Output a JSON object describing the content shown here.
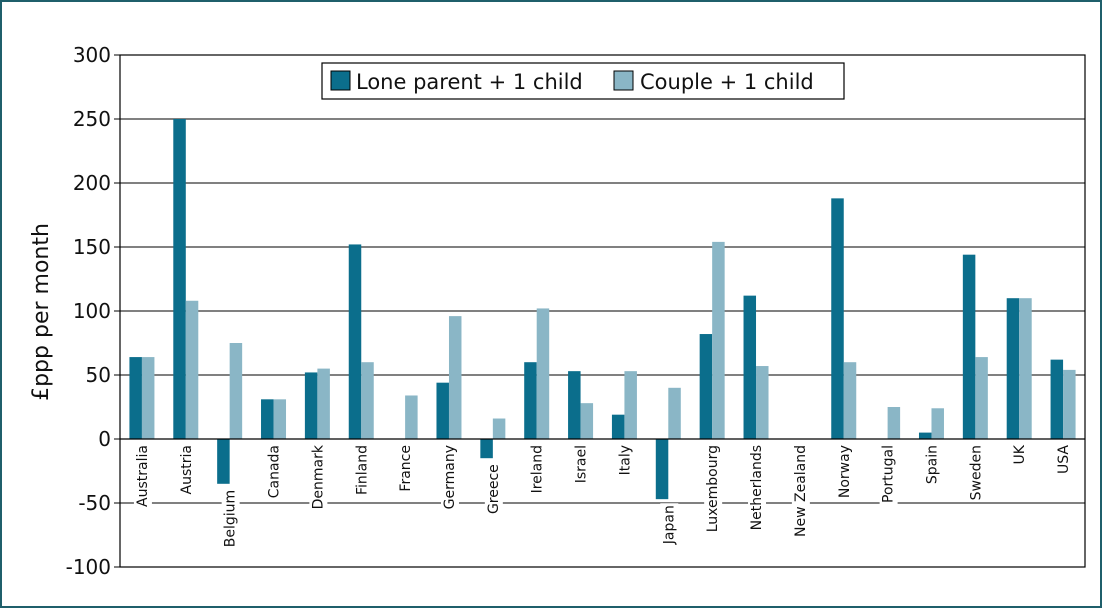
{
  "chart_data": {
    "type": "bar",
    "title": "",
    "xlabel": "",
    "ylabel": "£ppp per month",
    "ylim": [
      -100,
      300
    ],
    "yticks": [
      300,
      250,
      200,
      150,
      100,
      50,
      0,
      -50,
      -100
    ],
    "grid": true,
    "legend_position": "top-center",
    "categories": [
      "Australia",
      "Austria",
      "Belgium",
      "Canada",
      "Denmark",
      "Finland",
      "France",
      "Germany",
      "Greece",
      "Ireland",
      "Israel",
      "Italy",
      "Japan",
      "Luxembourg",
      "Netherlands",
      "New Zealand",
      "Norway",
      "Portugal",
      "Spain",
      "Sweden",
      "UK",
      "USA"
    ],
    "series": [
      {
        "name": "Lone parent + 1 child",
        "color": "#0b6e8c",
        "values": [
          64,
          250,
          -35,
          31,
          52,
          152,
          0,
          44,
          -15,
          60,
          53,
          19,
          -47,
          82,
          112,
          0,
          188,
          0,
          5,
          144,
          110,
          62
        ]
      },
      {
        "name": "Couple + 1 child",
        "color": "#8ab6c6",
        "values": [
          64,
          108,
          75,
          31,
          55,
          60,
          34,
          96,
          16,
          102,
          28,
          53,
          40,
          154,
          57,
          0,
          60,
          25,
          24,
          64,
          110,
          54
        ]
      }
    ]
  },
  "colors": {
    "frame": "#1f5f6b",
    "gridline": "#000000"
  }
}
